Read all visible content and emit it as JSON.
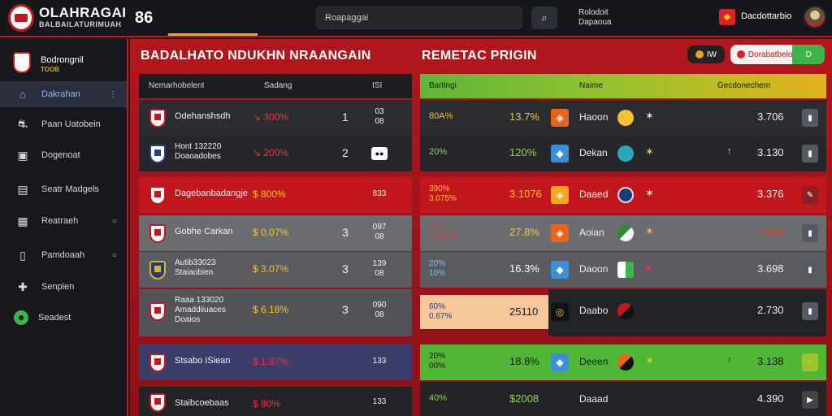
{
  "colors": {
    "accent": "#c0181f",
    "gold": "#e0b020",
    "green": "#3db44a"
  },
  "topbar": {
    "brand": "OLAHRAGAI",
    "brand_sub": "BALBAILATURIMUAH",
    "num": "86",
    "search_placeholder": "Roapaggai",
    "search_icon": "search-icon",
    "info_line1": "Rolodoit",
    "info_line2": "Dapaoua",
    "user_icon": "flag-icon",
    "user_name": "Dacdottarbio"
  },
  "sidebar": {
    "title": "Bodrongnil",
    "sub": "TOOB",
    "items": [
      {
        "label": "Dakrahan",
        "icon": "home-icon",
        "tail": "⋮"
      },
      {
        "label": "Paan Uatobein",
        "icon": "whistle-icon",
        "tail": ""
      },
      {
        "label": "Dogenoat",
        "icon": "camera-icon",
        "tail": ""
      },
      {
        "label": "Seatr Madgels",
        "icon": "document-icon",
        "tail": ""
      },
      {
        "label": "Reatraeh",
        "icon": "grid-icon",
        "tail": "○"
      },
      {
        "label": "Pamdoaah",
        "icon": "file-icon",
        "tail": "○"
      },
      {
        "label": "Senpien",
        "icon": "tools-icon",
        "tail": ""
      },
      {
        "label": "Seadest",
        "icon": "badge-icon",
        "tail": ""
      }
    ]
  },
  "left": {
    "title": "BADALHATO NDUKHN NRAANGAIN",
    "headers": [
      "Nemarhobelent",
      "Sadang",
      "ISI"
    ],
    "rows": [
      {
        "name": "Odehanshsdh",
        "chg": "↘ 300%",
        "pos": "1",
        "box": "03\n08"
      },
      {
        "name": "Hont 132220\nDoaoadobes",
        "chg": "↘ 200%",
        "pos": "2",
        "box": "●●"
      },
      {
        "name": "Dagebanbadangje",
        "chg": "$ 800%",
        "pos": "",
        "box": "833"
      },
      {
        "name": "Gobhe Carkan",
        "chg": "$ 0.07%",
        "pos": "3",
        "box": "097\n08"
      },
      {
        "name": "Autib33023\nStaiaobien",
        "chg": "$ 3.07%",
        "pos": "3",
        "box": "139\n08"
      },
      {
        "name": "Raaa 133020\nAmaddiiuaces\nDoaios",
        "chg": "$ 6.18%",
        "pos": "3",
        "box": "090\n08"
      },
      {
        "name": "Stsabo ISiean",
        "chg": "$ 1.87%",
        "pos": "",
        "box": "133"
      },
      {
        "name": "Staibcoebaas",
        "chg": "$ 80%",
        "pos": "",
        "box": "133"
      }
    ]
  },
  "right": {
    "title": "REMETAC PRIGIN",
    "pill_a": "IW",
    "pill_b": "Dorabatbelo",
    "pill_b_toggle": "D",
    "headers": [
      "Bartingi",
      "Naime",
      "Gecdonechem"
    ],
    "rows": [
      {
        "a": "80A%",
        "b": "13.7%",
        "c": "Haoon",
        "d": "",
        "e": "3.706",
        "btn": "▮"
      },
      {
        "a": "20%",
        "b": "120%",
        "c": "Dekan",
        "d": "↑",
        "e": "3.130",
        "btn": "▮"
      },
      {
        "a": "390%\n3.075%",
        "b": "3.1076",
        "c": "Daaed",
        "d": "",
        "e": "3.376",
        "btn": "✎"
      },
      {
        "a": "Solo\n3.075%",
        "b": "27.8%",
        "c": "Aoian",
        "d": "",
        "e": "140%",
        "btn": "▮"
      },
      {
        "a": "20%\n10%",
        "b": "16.3%",
        "c": "Daoon",
        "d": "",
        "e": "3.698",
        "btn": "▮"
      },
      {
        "a": "60%\n0.67%",
        "b": "25110",
        "c": "Daabo",
        "d": "",
        "e": "2.730",
        "btn": "▮"
      },
      {
        "a": "20%\n00%",
        "b": "18.8%",
        "c": "Deeen",
        "d": "↑",
        "e": "3.138",
        "btn": "+"
      },
      {
        "a": "40%",
        "b": "$2008",
        "c": "Daaad",
        "d": "",
        "e": "4.390",
        "btn": "▶"
      }
    ]
  }
}
